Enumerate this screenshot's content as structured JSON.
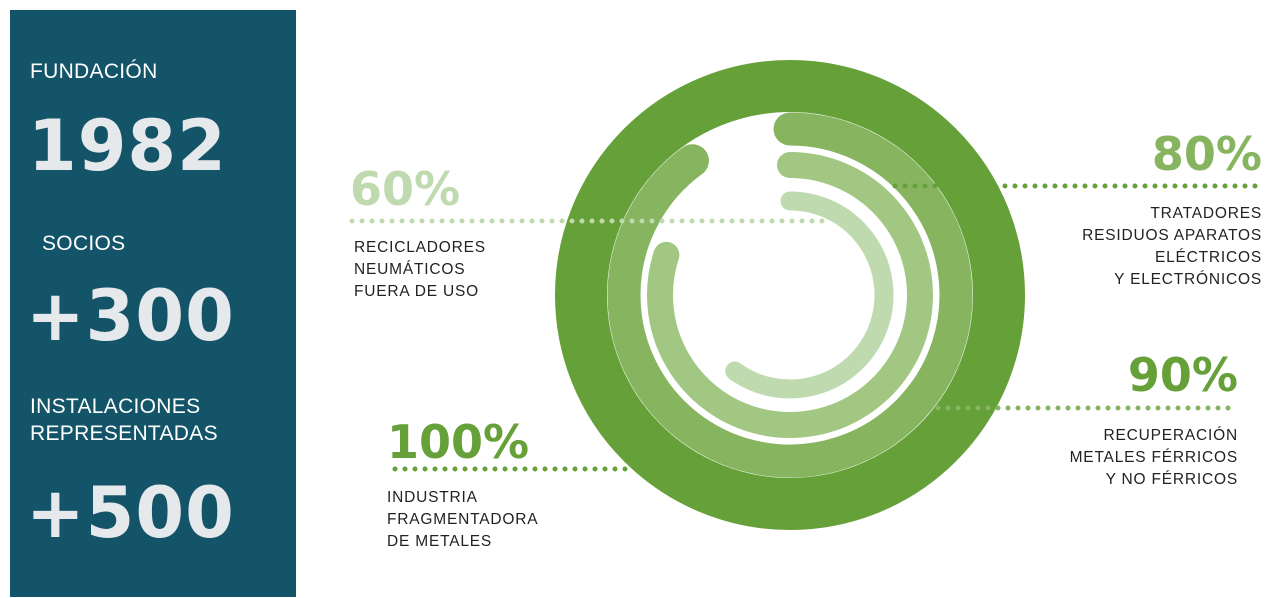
{
  "sidebar": {
    "stats": [
      {
        "label": "FUNDACIÓN",
        "value": "1982"
      },
      {
        "label": "SOCIOS",
        "value": "+300"
      },
      {
        "label": "INSTALACIONES\nREPRESENTADAS",
        "value": "+500"
      }
    ]
  },
  "colors": {
    "panel": "#145469",
    "ring_100": "#65a038",
    "ring_90": "#86b45f",
    "ring_80": "#a2c783",
    "ring_60": "#c0dab0"
  },
  "chart_data": {
    "type": "radial-bar",
    "unit": "%",
    "max": 100,
    "series": [
      {
        "value": 100,
        "label": "100%",
        "description": [
          "INDUSTRIA",
          "FRAGMENTADORA",
          "DE METALES"
        ]
      },
      {
        "value": 90,
        "label": "90%",
        "description": [
          "RECUPERACIÓN",
          "METALES FÉRRICOS",
          "Y NO FÉRRICOS"
        ]
      },
      {
        "value": 80,
        "label": "80%",
        "description": [
          "TRATADORES",
          "RESIDUOS APARATOS",
          "ELÉCTRICOS",
          "Y ELECTRÓNICOS"
        ]
      },
      {
        "value": 60,
        "label": "60%",
        "description": [
          "RECICLADORES",
          "NEUMÁTICOS",
          "FUERA DE USO"
        ]
      }
    ]
  }
}
